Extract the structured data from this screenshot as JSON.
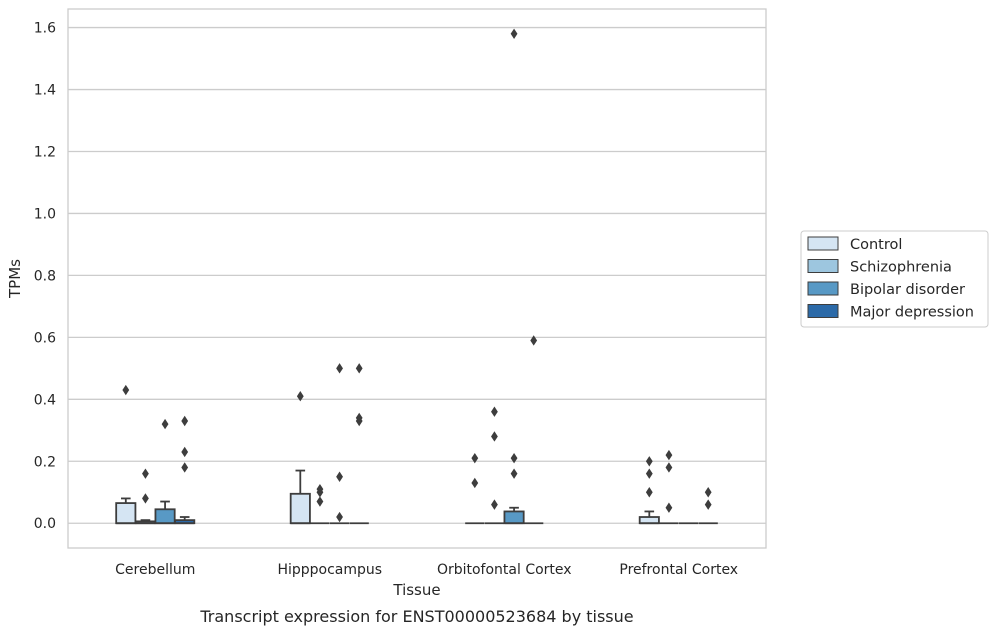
{
  "chart_data": {
    "type": "box",
    "title": "Transcript expression for ENST00000523684 by tissue",
    "xlabel": "Tissue",
    "ylabel": "TPMs",
    "ylim": [
      -0.08,
      1.66
    ],
    "yticks": [
      "0.0",
      "0.2",
      "0.4",
      "0.6",
      "0.8",
      "1.0",
      "1.2",
      "1.4",
      "1.6"
    ],
    "ytick_values": [
      0.0,
      0.2,
      0.4,
      0.6,
      0.8,
      1.0,
      1.2,
      1.4,
      1.6
    ],
    "grid": true,
    "legend_position": "right",
    "categories": [
      "Cerebellum",
      "Hipppocampus",
      "Orbitofontal Cortex",
      "Prefrontal Cortex"
    ],
    "series": [
      {
        "name": "Control",
        "color": "#d5e5f3",
        "boxes": [
          {
            "q1": 0.0,
            "median": 0.0,
            "q3": 0.065,
            "whisker_low": 0.0,
            "whisker_high": 0.08,
            "outliers": [
              0.43
            ]
          },
          {
            "q1": 0.0,
            "median": 0.0,
            "q3": 0.095,
            "whisker_low": 0.0,
            "whisker_high": 0.17,
            "outliers": [
              0.41
            ]
          },
          {
            "q1": 0.0,
            "median": 0.0,
            "q3": 0.0,
            "whisker_low": 0.0,
            "whisker_high": 0.0,
            "outliers": [
              0.21,
              0.13
            ]
          },
          {
            "q1": 0.0,
            "median": 0.0,
            "q3": 0.02,
            "whisker_low": 0.0,
            "whisker_high": 0.038,
            "outliers": [
              0.2,
              0.16,
              0.1
            ]
          }
        ]
      },
      {
        "name": "Schizophrenia",
        "color": "#9dc6df",
        "boxes": [
          {
            "q1": 0.0,
            "median": 0.0,
            "q3": 0.006,
            "whisker_low": 0.0,
            "whisker_high": 0.01,
            "outliers": [
              0.16,
              0.08
            ]
          },
          {
            "q1": 0.0,
            "median": 0.0,
            "q3": 0.0,
            "whisker_low": 0.0,
            "whisker_high": 0.0,
            "outliers": [
              0.11,
              0.1,
              0.07
            ]
          },
          {
            "q1": 0.0,
            "median": 0.0,
            "q3": 0.0,
            "whisker_low": 0.0,
            "whisker_high": 0.0,
            "outliers": [
              0.36,
              0.28,
              0.06
            ]
          },
          {
            "q1": 0.0,
            "median": 0.0,
            "q3": 0.0,
            "whisker_low": 0.0,
            "whisker_high": 0.0,
            "outliers": [
              0.22,
              0.18,
              0.05
            ]
          }
        ]
      },
      {
        "name": "Bipolar disorder",
        "color": "#5899c5",
        "boxes": [
          {
            "q1": 0.0,
            "median": 0.0,
            "q3": 0.045,
            "whisker_low": 0.0,
            "whisker_high": 0.07,
            "outliers": [
              0.32
            ]
          },
          {
            "q1": 0.0,
            "median": 0.0,
            "q3": 0.0,
            "whisker_low": 0.0,
            "whisker_high": 0.0,
            "outliers": [
              0.5,
              0.15,
              0.02
            ]
          },
          {
            "q1": 0.0,
            "median": 0.0,
            "q3": 0.038,
            "whisker_low": 0.0,
            "whisker_high": 0.05,
            "outliers": [
              1.58,
              0.21,
              0.16
            ]
          },
          {
            "q1": 0.0,
            "median": 0.0,
            "q3": 0.0,
            "whisker_low": 0.0,
            "whisker_high": 0.0,
            "outliers": []
          }
        ]
      },
      {
        "name": "Major depression",
        "color": "#2c6aa8",
        "boxes": [
          {
            "q1": 0.0,
            "median": 0.0,
            "q3": 0.01,
            "whisker_low": 0.0,
            "whisker_high": 0.02,
            "outliers": [
              0.33,
              0.23,
              0.18
            ]
          },
          {
            "q1": 0.0,
            "median": 0.0,
            "q3": 0.0,
            "whisker_low": 0.0,
            "whisker_high": 0.0,
            "outliers": [
              0.5,
              0.34,
              0.33
            ]
          },
          {
            "q1": 0.0,
            "median": 0.0,
            "q3": 0.0,
            "whisker_low": 0.0,
            "whisker_high": 0.0,
            "outliers": [
              0.59
            ]
          },
          {
            "q1": 0.0,
            "median": 0.0,
            "q3": 0.0,
            "whisker_low": 0.0,
            "whisker_high": 0.0,
            "outliers": [
              0.1,
              0.06
            ]
          }
        ]
      }
    ]
  }
}
